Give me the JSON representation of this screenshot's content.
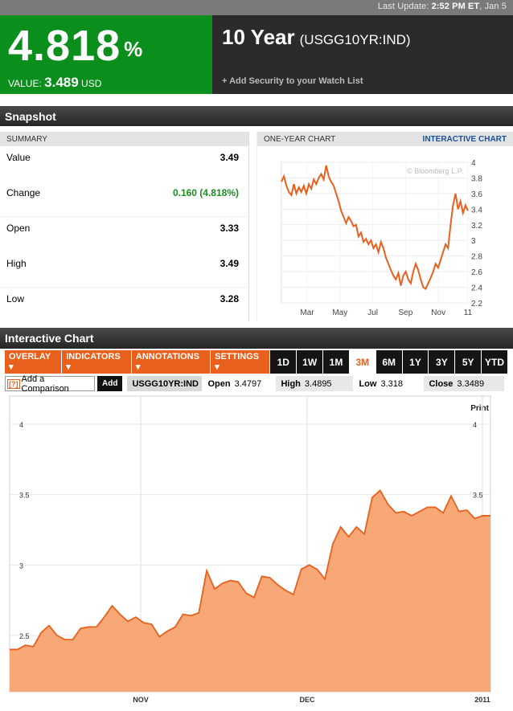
{
  "topbar": {
    "label": "Last Update:",
    "time": "2:52 PM ET",
    "date": ", Jan 5"
  },
  "quote": {
    "price": "4.818",
    "pct_sign": "%",
    "value_label": "VALUE:",
    "value": "3.489",
    "currency": "USD"
  },
  "security": {
    "name": "10 Year",
    "ticker": "(USGG10YR:IND)",
    "watch_label": "+ Add Security to your Watch List"
  },
  "snapshot": {
    "title": "Snapshot",
    "summary_header": "SUMMARY",
    "rows": [
      {
        "label": "Value",
        "value": "3.49"
      },
      {
        "label": "Change",
        "value": "0.160 (4.818%)"
      },
      {
        "label": "Open",
        "value": "3.33"
      },
      {
        "label": "High",
        "value": "3.49"
      },
      {
        "label": "Low",
        "value": "3.28"
      }
    ],
    "oneyear_header": "ONE-YEAR CHART",
    "interactive_link": "INTERACTIVE CHART",
    "watermark": "© Bloomberg L.P."
  },
  "colors": {
    "green": "#0a8f1c",
    "orange": "#e8601c",
    "up": "#1a8d1f",
    "area_fill": "#f8a877",
    "area_line": "#e8601c"
  },
  "interactive": {
    "title": "Interactive Chart",
    "menus": [
      "OVERLAY ▾",
      "INDICATORS ▾",
      "ANNOTATIONS ▾",
      "SETTINGS ▾"
    ],
    "ranges": [
      "1D",
      "1W",
      "1M",
      "3M",
      "6M",
      "1Y",
      "3Y",
      "5Y",
      "YTD"
    ],
    "selected_range": "3M",
    "compare_qmark": "[?]",
    "compare_label": "Add a Comparison",
    "add_label": "Add",
    "ticker": "USGG10YR:IND",
    "stats": [
      {
        "label": "Open",
        "value": "3.4797"
      },
      {
        "label": "High",
        "value": "3.4895"
      },
      {
        "label": "Low",
        "value": "3.318"
      },
      {
        "label": "Close",
        "value": "3.3489"
      }
    ],
    "print_label": "Print"
  },
  "chart_data": [
    {
      "type": "line",
      "x_tick_labels": [
        "Mar",
        "May",
        "Jul",
        "Sep",
        "Nov",
        "11"
      ],
      "y_tick_labels": [
        "4",
        "3.8",
        "3.6",
        "3.4",
        "3.2",
        "3",
        "2.8",
        "2.6",
        "2.4",
        "2.2"
      ],
      "ylim": [
        2.2,
        4.0
      ],
      "grid": true,
      "values": [
        3.75,
        3.82,
        3.7,
        3.62,
        3.58,
        3.72,
        3.6,
        3.68,
        3.62,
        3.7,
        3.6,
        3.72,
        3.66,
        3.78,
        3.72,
        3.8,
        3.85,
        3.78,
        3.96,
        3.82,
        3.75,
        3.7,
        3.6,
        3.5,
        3.38,
        3.3,
        3.22,
        3.3,
        3.25,
        3.18,
        3.2,
        3.05,
        3.1,
        2.98,
        3.02,
        2.95,
        3.0,
        2.9,
        2.95,
        2.85,
        2.98,
        2.9,
        2.78,
        2.7,
        2.62,
        2.55,
        2.5,
        2.58,
        2.42,
        2.55,
        2.6,
        2.5,
        2.45,
        2.6,
        2.7,
        2.62,
        2.5,
        2.4,
        2.38,
        2.45,
        2.52,
        2.6,
        2.7,
        2.65,
        2.75,
        2.85,
        2.95,
        2.9,
        3.2,
        3.45,
        3.6,
        3.4,
        3.5,
        3.35,
        3.45,
        3.38
      ]
    },
    {
      "type": "area",
      "x_tick_labels": [
        "NOV",
        "DEC",
        "2011"
      ],
      "y_tick_labels": [
        "4",
        "3.5",
        "3",
        "2.5"
      ],
      "ylim": [
        2.1,
        4.2
      ],
      "grid": true,
      "values": [
        2.4,
        2.4,
        2.43,
        2.42,
        2.52,
        2.57,
        2.5,
        2.47,
        2.47,
        2.55,
        2.56,
        2.56,
        2.63,
        2.71,
        2.65,
        2.6,
        2.63,
        2.59,
        2.58,
        2.49,
        2.53,
        2.56,
        2.65,
        2.64,
        2.66,
        2.96,
        2.83,
        2.87,
        2.89,
        2.88,
        2.8,
        2.77,
        2.92,
        2.91,
        2.86,
        2.82,
        2.79,
        2.97,
        3.0,
        2.97,
        2.9,
        3.15,
        3.27,
        3.2,
        3.27,
        3.22,
        3.48,
        3.53,
        3.43,
        3.37,
        3.38,
        3.35,
        3.38,
        3.41,
        3.41,
        3.37,
        3.49,
        3.38,
        3.39,
        3.33,
        3.35,
        3.35
      ]
    }
  ]
}
